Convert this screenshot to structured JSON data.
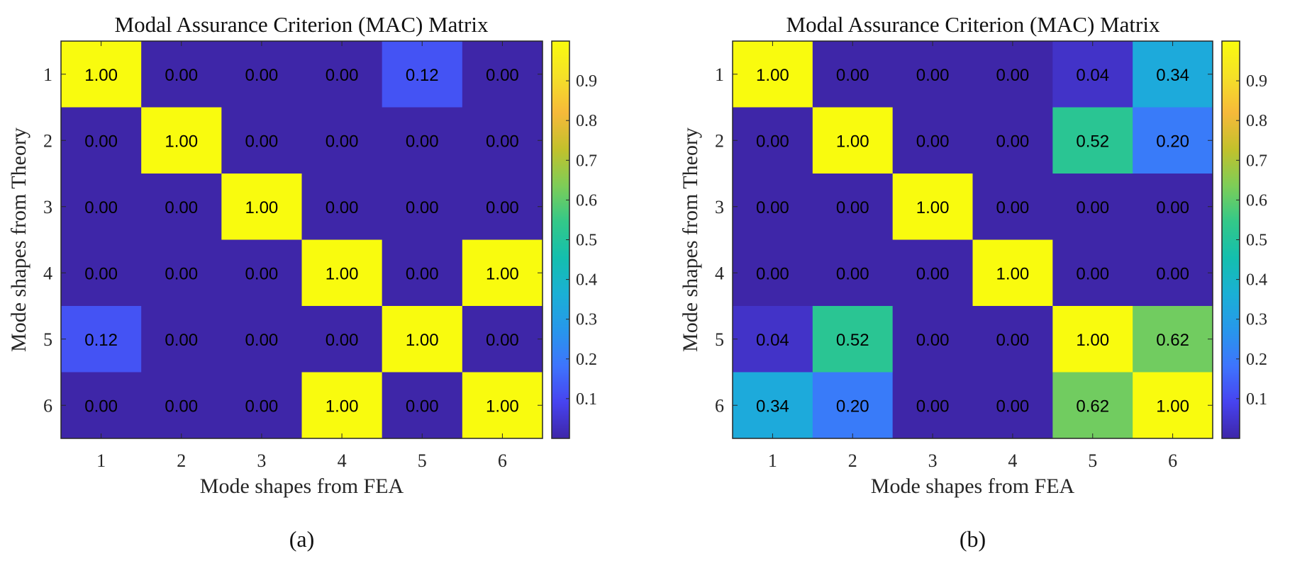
{
  "chart_data": [
    {
      "type": "heatmap",
      "panel_caption": "(a)",
      "title": "Modal Assurance Criterion (MAC) Matrix",
      "xlabel": "Mode shapes from FEA",
      "ylabel": "Mode shapes from Theory",
      "x_ticks": [
        "1",
        "2",
        "3",
        "4",
        "5",
        "6"
      ],
      "y_ticks": [
        "1",
        "2",
        "3",
        "4",
        "5",
        "6"
      ],
      "values": [
        [
          1.0,
          0.0,
          0.0,
          0.0,
          0.12,
          0.0
        ],
        [
          0.0,
          1.0,
          0.0,
          0.0,
          0.0,
          0.0
        ],
        [
          0.0,
          0.0,
          1.0,
          0.0,
          0.0,
          0.0
        ],
        [
          0.0,
          0.0,
          0.0,
          1.0,
          0.0,
          1.0
        ],
        [
          0.12,
          0.0,
          0.0,
          0.0,
          1.0,
          0.0
        ],
        [
          0.0,
          0.0,
          0.0,
          1.0,
          0.0,
          1.0
        ]
      ],
      "value_format": "2 decimals",
      "colormap": "parula",
      "colorbar": {
        "range": [
          0,
          1
        ],
        "ticks": [
          "0.1",
          "0.2",
          "0.3",
          "0.4",
          "0.5",
          "0.6",
          "0.7",
          "0.8",
          "0.9"
        ],
        "tick_values": [
          0.1,
          0.2,
          0.3,
          0.4,
          0.5,
          0.6,
          0.7,
          0.8,
          0.9
        ],
        "placement": "right"
      },
      "grid": false
    },
    {
      "type": "heatmap",
      "panel_caption": "(b)",
      "title": "Modal Assurance Criterion (MAC) Matrix",
      "xlabel": "Mode shapes from FEA",
      "ylabel": "Mode shapes from Theory",
      "x_ticks": [
        "1",
        "2",
        "3",
        "4",
        "5",
        "6"
      ],
      "y_ticks": [
        "1",
        "2",
        "3",
        "4",
        "5",
        "6"
      ],
      "values": [
        [
          1.0,
          0.0,
          0.0,
          0.0,
          0.04,
          0.34
        ],
        [
          0.0,
          1.0,
          0.0,
          0.0,
          0.52,
          0.2
        ],
        [
          0.0,
          0.0,
          1.0,
          0.0,
          0.0,
          0.0
        ],
        [
          0.0,
          0.0,
          0.0,
          1.0,
          0.0,
          0.0
        ],
        [
          0.04,
          0.52,
          0.0,
          0.0,
          1.0,
          0.62
        ],
        [
          0.34,
          0.2,
          0.0,
          0.0,
          0.62,
          1.0
        ]
      ],
      "value_format": "2 decimals",
      "colormap": "parula",
      "colorbar": {
        "range": [
          0,
          1
        ],
        "ticks": [
          "0.1",
          "0.2",
          "0.3",
          "0.4",
          "0.5",
          "0.6",
          "0.7",
          "0.8",
          "0.9"
        ],
        "tick_values": [
          0.1,
          0.2,
          0.3,
          0.4,
          0.5,
          0.6,
          0.7,
          0.8,
          0.9
        ],
        "placement": "right"
      },
      "grid": false
    }
  ],
  "colors": {
    "parula_stops": [
      "#3e26a8",
      "#4743f0",
      "#3e74fd",
      "#2797eb",
      "#1ab0d5",
      "#14bfae",
      "#33c889",
      "#7ecd57",
      "#c2c12c",
      "#f6b93a",
      "#f5e028",
      "#f9fb0e"
    ],
    "axis": "#262626"
  }
}
